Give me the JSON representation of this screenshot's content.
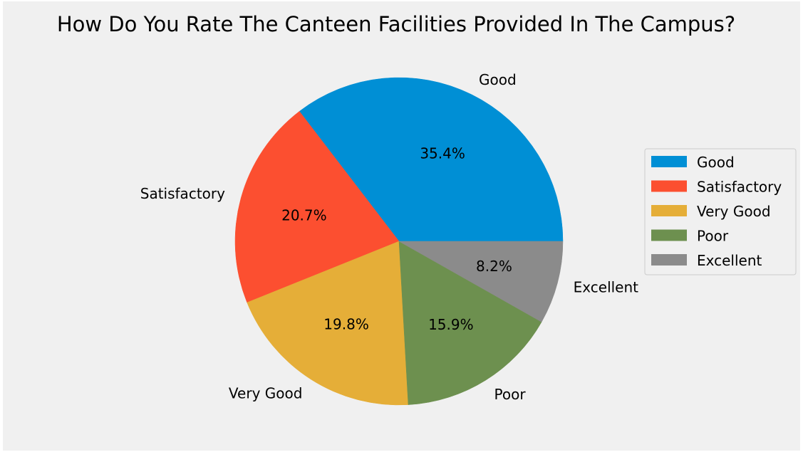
{
  "chart_data": {
    "type": "pie",
    "title": "How Do You Rate The Canteen Facilities Provided In The Campus?",
    "categories": [
      "Good",
      "Satisfactory",
      "Very Good",
      "Poor",
      "Excellent"
    ],
    "values": [
      35.4,
      20.7,
      19.8,
      15.9,
      8.2
    ],
    "percent_labels": [
      "35.4%",
      "20.7%",
      "19.8%",
      "15.9%",
      "8.2%"
    ],
    "colors": [
      "#008fd5",
      "#fc4f30",
      "#e5ae38",
      "#6d904f",
      "#8b8b8b"
    ],
    "start_angle_deg": 0,
    "direction": "counterclockwise",
    "legend": {
      "placement": "center-right",
      "entries": [
        "Good",
        "Satisfactory",
        "Very Good",
        "Poor",
        "Excellent"
      ]
    },
    "background": "#f0f0f0"
  }
}
